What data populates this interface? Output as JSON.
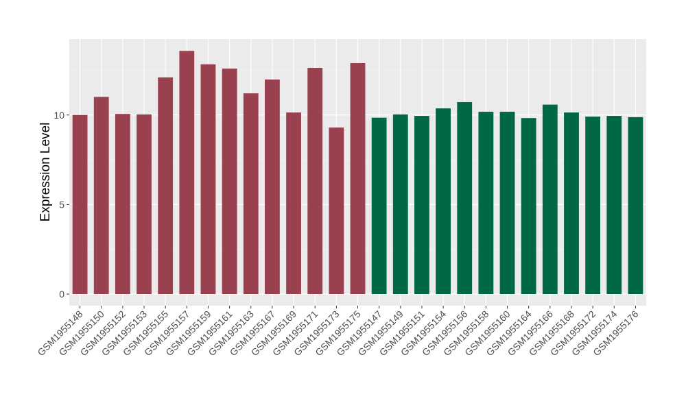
{
  "chart_data": {
    "type": "bar",
    "title": "",
    "xlabel": "",
    "ylabel": "Expression Level",
    "ylim": [
      -0.65,
      14.24
    ],
    "yticks": [
      0,
      5,
      10
    ],
    "grid": true,
    "legend": "none",
    "categories": [
      "GSM1955148",
      "GSM1955150",
      "GSM1955152",
      "GSM1955153",
      "GSM1955155",
      "GSM1955157",
      "GSM1955159",
      "GSM1955161",
      "GSM1955163",
      "GSM1955167",
      "GSM1955169",
      "GSM1955171",
      "GSM1955173",
      "GSM1955175",
      "GSM1955147",
      "GSM1955149",
      "GSM1955151",
      "GSM1955154",
      "GSM1955156",
      "GSM1955158",
      "GSM1955160",
      "GSM1955164",
      "GSM1955166",
      "GSM1955168",
      "GSM1955172",
      "GSM1955174",
      "GSM1955176"
    ],
    "values": [
      10.0,
      11.01,
      10.06,
      10.03,
      12.1,
      13.58,
      12.83,
      12.59,
      11.21,
      11.98,
      10.14,
      12.63,
      9.3,
      12.9,
      9.85,
      10.03,
      9.95,
      10.37,
      10.72,
      10.18,
      10.18,
      9.83,
      10.58,
      10.14,
      9.91,
      9.95,
      9.88
    ],
    "groups": [
      0,
      0,
      0,
      0,
      0,
      0,
      0,
      0,
      0,
      0,
      0,
      0,
      0,
      0,
      1,
      1,
      1,
      1,
      1,
      1,
      1,
      1,
      1,
      1,
      1,
      1,
      1
    ],
    "group_colors": [
      "#9A4150",
      "#006747"
    ]
  }
}
